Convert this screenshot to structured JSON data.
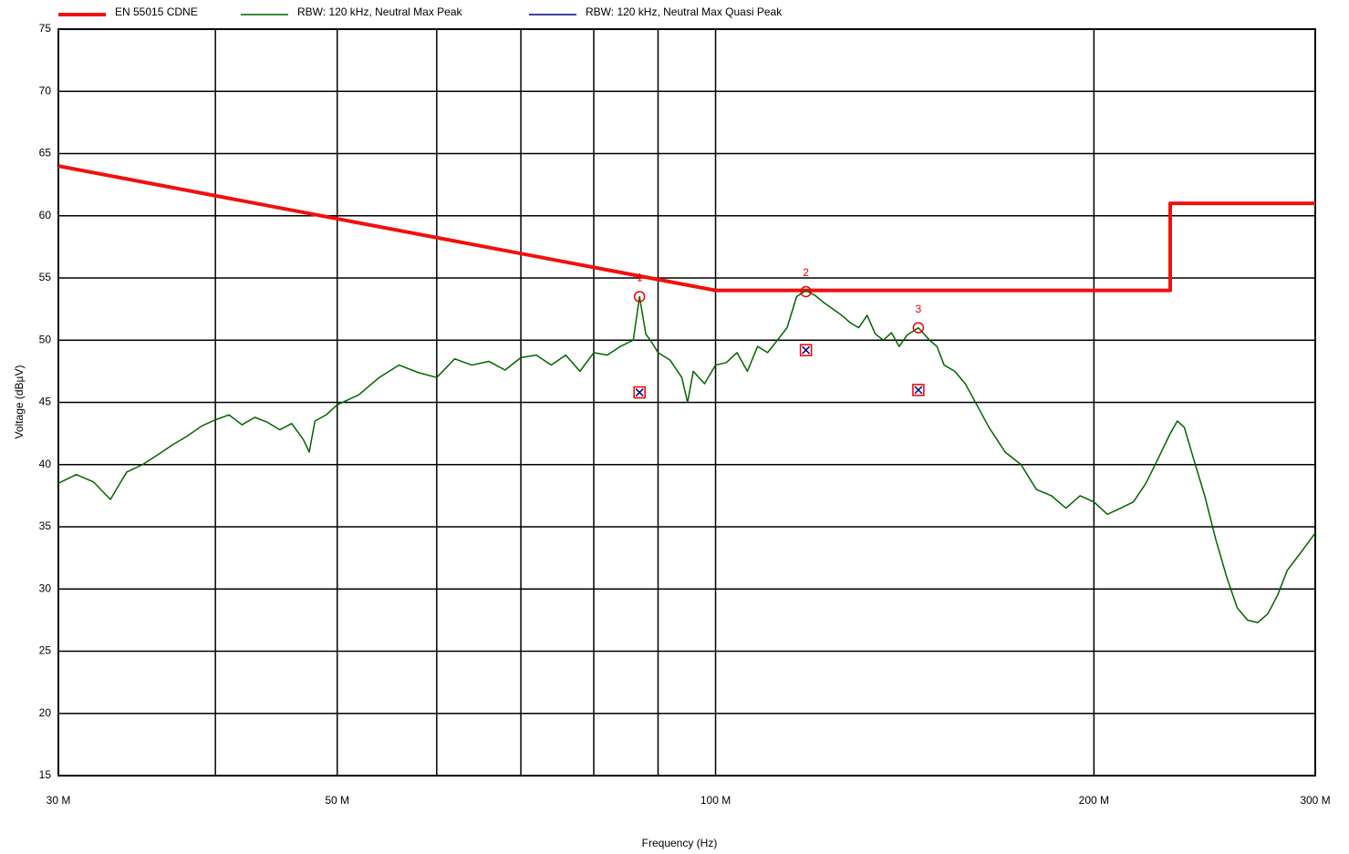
{
  "chart_data": {
    "type": "line",
    "xlabel": "Frequency (Hz)",
    "ylabel": "Voltage (dBµV)",
    "xscale": "log",
    "grid": true,
    "xlim": [
      30000000,
      300000000
    ],
    "ylim": [
      15,
      75
    ],
    "xticks": [
      {
        "value": 30000000,
        "label": "30 M"
      },
      {
        "value": 50000000,
        "label": "50 M"
      },
      {
        "value": 100000000,
        "label": "100 M"
      },
      {
        "value": 200000000,
        "label": "200 M"
      },
      {
        "value": 300000000,
        "label": "300 M"
      }
    ],
    "xminor": [
      40000000,
      60000000,
      70000000,
      80000000,
      90000000
    ],
    "yticks": [
      15,
      20,
      25,
      30,
      35,
      40,
      45,
      50,
      55,
      60,
      65,
      70,
      75
    ],
    "series": [
      {
        "name": "EN 55015 CDNE",
        "color": "#ee1111",
        "width": 4,
        "x": [
          30000000,
          100000000,
          230000000,
          230000000,
          300000000
        ],
        "values": [
          64,
          54,
          54,
          61,
          61
        ]
      },
      {
        "name": "RBW: 120 kHz, Neutral Max Peak",
        "color": "#006400",
        "width": 1.5,
        "x": [
          30000000,
          31000000,
          32000000,
          33000000,
          34000000,
          35000000,
          36000000,
          37000000,
          38000000,
          39000000,
          40000000,
          41000000,
          42000000,
          43000000,
          44000000,
          45000000,
          46000000,
          47000000,
          47500000,
          48000000,
          49000000,
          50000000,
          52000000,
          54000000,
          56000000,
          58000000,
          60000000,
          62000000,
          64000000,
          66000000,
          68000000,
          70000000,
          72000000,
          74000000,
          76000000,
          78000000,
          80000000,
          82000000,
          84000000,
          86000000,
          87000000,
          88000000,
          89000000,
          90000000,
          92000000,
          94000000,
          95000000,
          96000000,
          98000000,
          100000000,
          102000000,
          104000000,
          106000000,
          108000000,
          110000000,
          112000000,
          114000000,
          116000000,
          118000000,
          120000000,
          122000000,
          124000000,
          126000000,
          128000000,
          130000000,
          132000000,
          134000000,
          136000000,
          138000000,
          140000000,
          142000000,
          145000000,
          148000000,
          150000000,
          152000000,
          155000000,
          158000000,
          160000000,
          165000000,
          170000000,
          175000000,
          180000000,
          185000000,
          190000000,
          195000000,
          200000000,
          205000000,
          210000000,
          215000000,
          220000000,
          225000000,
          230000000,
          233000000,
          236000000,
          240000000,
          245000000,
          250000000,
          255000000,
          260000000,
          265000000,
          270000000,
          275000000,
          280000000,
          285000000,
          290000000,
          295000000,
          300000000
        ],
        "values": [
          38.5,
          39.2,
          38.6,
          37.2,
          39.4,
          40,
          40.8,
          41.6,
          42.3,
          43.1,
          43.6,
          44,
          43.2,
          43.8,
          43.4,
          42.8,
          43.3,
          42,
          41,
          43.5,
          44,
          44.8,
          45.6,
          47,
          48,
          47.4,
          47,
          48.5,
          48,
          48.3,
          47.6,
          48.6,
          48.8,
          48,
          48.8,
          47.5,
          49,
          48.8,
          49.5,
          50,
          53.5,
          50.5,
          49.8,
          49,
          48.4,
          47,
          45,
          47.5,
          46.5,
          48,
          48.2,
          49,
          47.5,
          49.5,
          49,
          50,
          51,
          53.5,
          54,
          53.6,
          53,
          52.5,
          52,
          51.4,
          51,
          52,
          50.5,
          50,
          50.6,
          49.5,
          50.4,
          51,
          50,
          49.5,
          48,
          47.5,
          46.5,
          45.5,
          43,
          41,
          40,
          38,
          37.5,
          36.5,
          37.5,
          37,
          36,
          36.5,
          37,
          38.5,
          40.5,
          42.5,
          43.5,
          43,
          40.5,
          37.5,
          34,
          31,
          28.5,
          27.5,
          27.3,
          28,
          29.5,
          31.5,
          32.5,
          33.5,
          34.5
        ]
      },
      {
        "name": "RBW: 120 kHz, Neutral Max Quasi Peak",
        "color": "#000080",
        "width": 1.5,
        "marker": "boxed-x",
        "x": [
          87000000,
          118000000,
          145000000
        ],
        "values": [
          45.8,
          49.2,
          46
        ]
      }
    ],
    "markers": [
      {
        "label": "1",
        "x": 87000000,
        "value": 53.5
      },
      {
        "label": "2",
        "x": 118000000,
        "value": 53.9
      },
      {
        "label": "3",
        "x": 145000000,
        "value": 51
      }
    ]
  }
}
